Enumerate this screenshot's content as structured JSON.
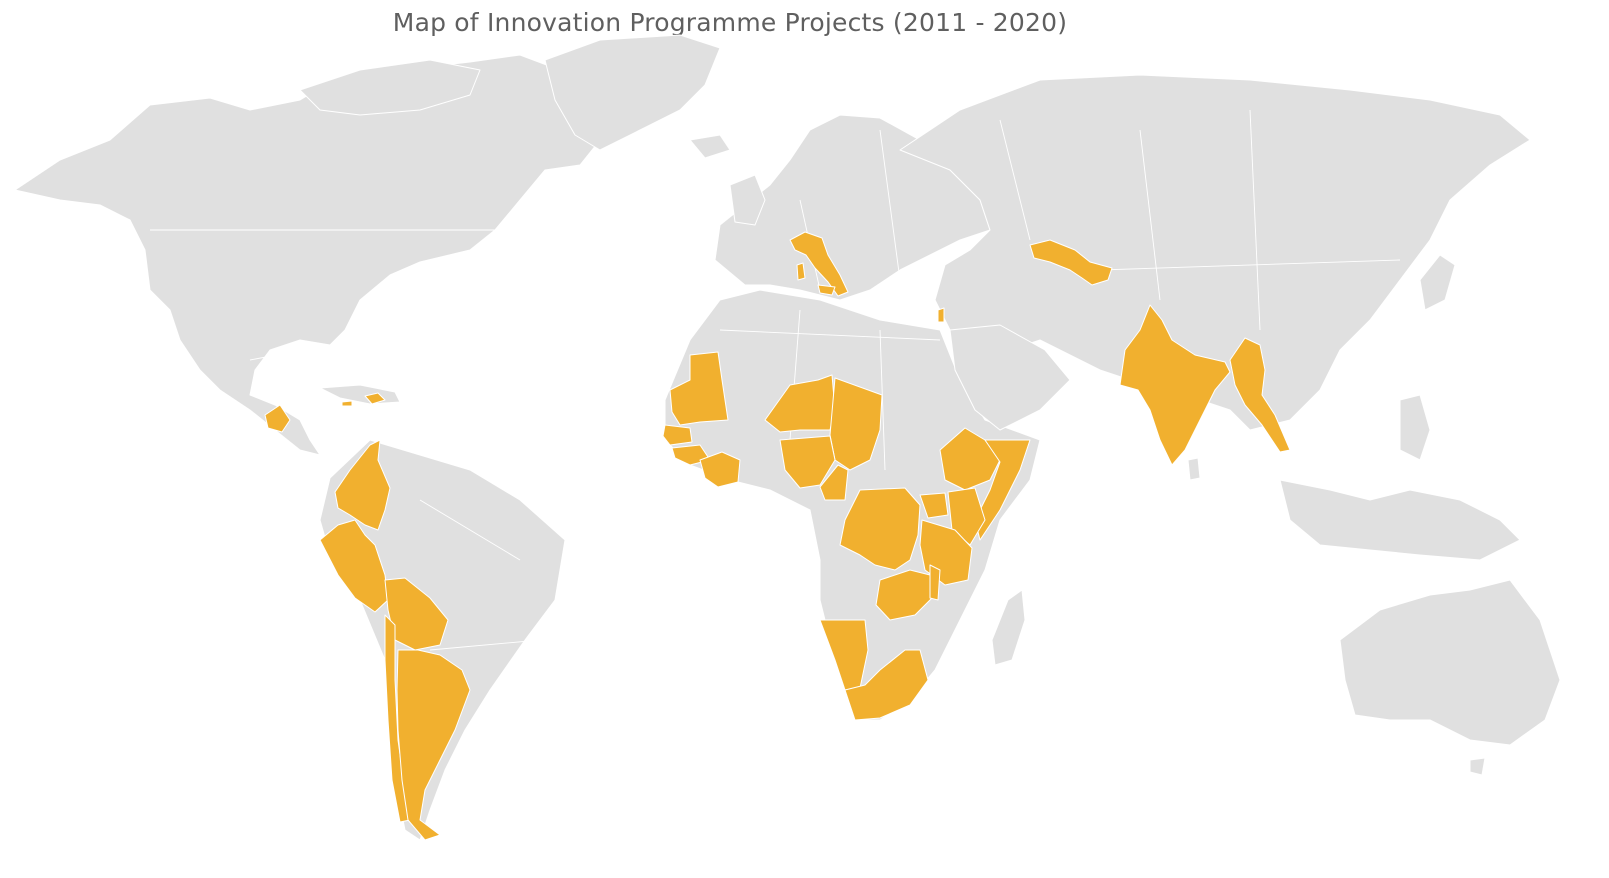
{
  "map": {
    "title": "Map of Innovation Programme Projects (2011 - 2020)",
    "colors": {
      "land": "#e0e0e0",
      "highlight": "#f1b02f",
      "background": "#ffffff",
      "title": "#5f5f5f"
    }
  }
}
